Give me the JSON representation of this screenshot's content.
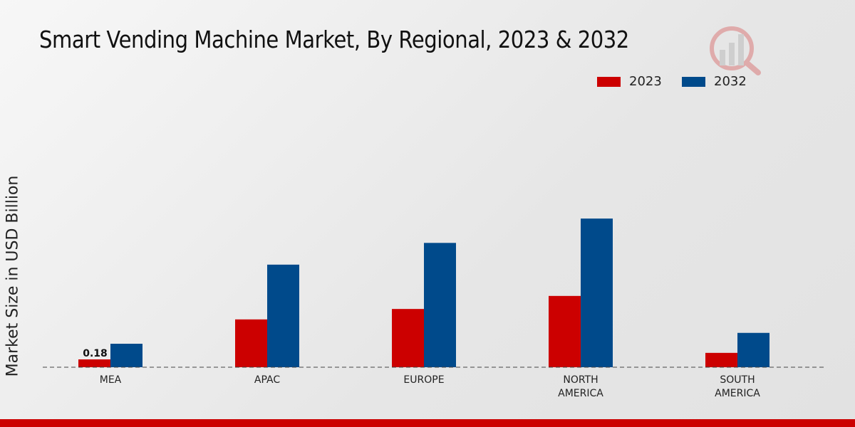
{
  "title": "Smart Vending Machine Market, By Regional, 2023 & 2032",
  "chart_data": {
    "type": "bar",
    "title": "Smart Vending Machine Market, By Regional, 2023 & 2032",
    "xlabel": "",
    "ylabel": "Market Size in USD Billion",
    "ylim": [
      0,
      6.5
    ],
    "grid": false,
    "legend_position": "top-right",
    "categories": [
      "MEA",
      "APAC",
      "EUROPE",
      "NORTH AMERICA",
      "SOUTH AMERICA"
    ],
    "category_lines": [
      [
        "MEA"
      ],
      [
        "APAC"
      ],
      [
        "EUROPE"
      ],
      [
        "NORTH",
        "AMERICA"
      ],
      [
        "SOUTH",
        "AMERICA"
      ]
    ],
    "series": [
      {
        "name": "2023",
        "color": "#cc0000",
        "values": [
          0.18,
          1.1,
          1.34,
          1.64,
          0.33
        ]
      },
      {
        "name": "2032",
        "color": "#004a8b",
        "values": [
          0.54,
          2.36,
          2.86,
          3.42,
          0.79
        ]
      }
    ],
    "annotations": [
      {
        "category": "MEA",
        "series": "2023",
        "text": "0.18"
      }
    ]
  }
}
